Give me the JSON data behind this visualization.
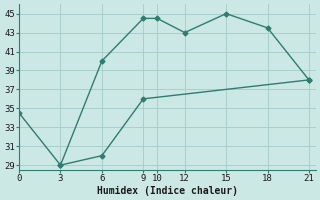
{
  "line1_x": [
    0,
    3,
    6,
    9,
    10,
    12,
    15,
    18,
    21
  ],
  "line1_y": [
    34.5,
    29,
    40,
    44.5,
    44.5,
    43,
    45,
    43.5,
    38
  ],
  "line2_x": [
    3,
    6,
    9,
    21
  ],
  "line2_y": [
    29,
    30,
    36,
    38
  ],
  "xlabel": "Humidex (Indice chaleur)",
  "xlim": [
    0,
    21.5
  ],
  "ylim": [
    28.5,
    46
  ],
  "xticks": [
    0,
    3,
    6,
    9,
    10,
    12,
    15,
    18,
    21
  ],
  "yticks": [
    29,
    31,
    33,
    35,
    37,
    39,
    41,
    43,
    45
  ],
  "line_color": "#2e7d6e",
  "bg_color": "#cce8e4",
  "grid_color": "#aacfca",
  "marker": "D",
  "marker_size": 2.5,
  "linewidth": 1.0
}
